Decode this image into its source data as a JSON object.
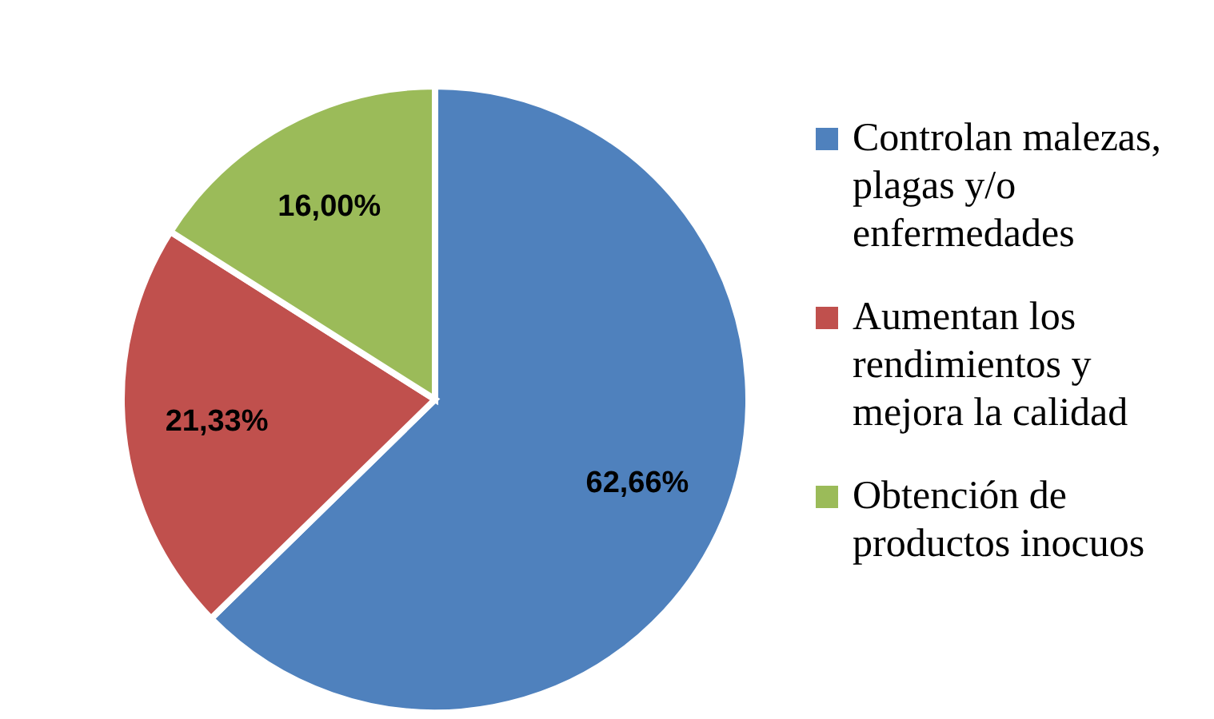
{
  "chart_data": {
    "type": "pie",
    "categories": [
      "Controlan malezas, plagas y/o enfermedades",
      "Aumentan los rendimientos y mejora la calidad",
      "Obtención de productos inocuos"
    ],
    "values": [
      62.66,
      21.33,
      16.0
    ],
    "colors": [
      "#4f81bd",
      "#c0504d",
      "#9bbb59"
    ],
    "value_labels": [
      "62,66%",
      "21,33%",
      "16,00%"
    ],
    "legend": "right"
  }
}
